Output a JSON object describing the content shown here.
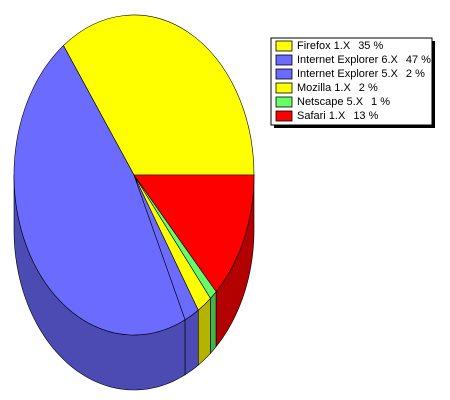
{
  "chart_data": {
    "type": "pie",
    "categories": [
      "Firefox 1.X",
      "Internet Explorer 6.X",
      "Internet Explorer 5.X",
      "Mozilla 1.X",
      "Netscape 5.X",
      "Safari 1.X"
    ],
    "values": [
      35,
      47,
      2,
      2,
      1,
      13
    ],
    "value_labels": [
      "35 %",
      "47 %",
      "2 %",
      "2 %",
      "1 %",
      "13 %"
    ],
    "colors": [
      "#ffff00",
      "#6b6bff",
      "#6b6bff",
      "#ffff00",
      "#66ff66",
      "#ff0000"
    ],
    "legend": "top-right"
  }
}
